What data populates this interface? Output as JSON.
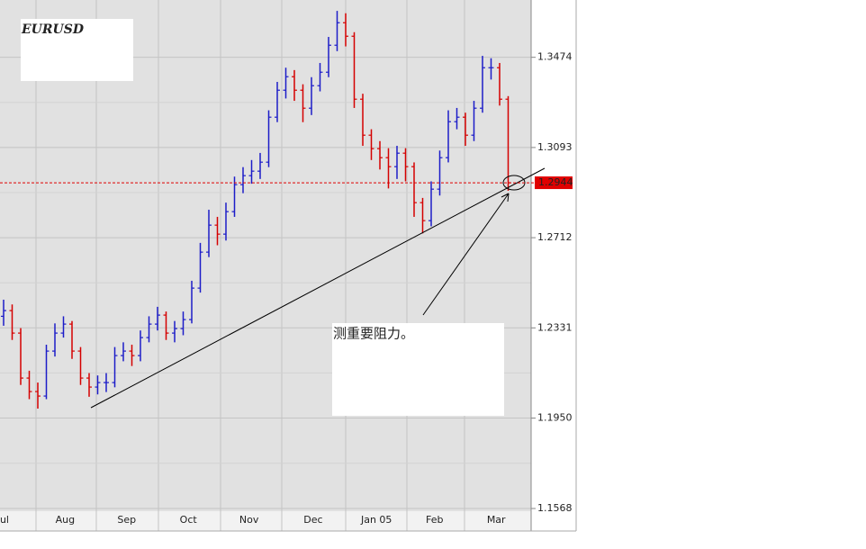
{
  "chart_data": {
    "type": "ohlc",
    "title": "EURUSD",
    "annotation": "测重要阻力。",
    "up_color": "#1c1cc8",
    "down_color": "#d40000",
    "last_price": 1.2944,
    "last_price_color": "#e00000",
    "ylim": [
      1.1473,
      1.3716
    ],
    "yticks": [
      {
        "value": 1.1568,
        "label": "1.1568"
      },
      {
        "value": 1.195,
        "label": "1.1950"
      },
      1.2331,
      1.2712,
      1.3093,
      1.3474
    ],
    "xlim": [
      0,
      60
    ],
    "xticks": [
      {
        "value": 0.1,
        "label": "ul"
      },
      {
        "value": 7.2,
        "label": "Aug"
      },
      {
        "value": 14.4,
        "label": "Sep"
      },
      {
        "value": 21.6,
        "label": "Oct"
      },
      {
        "value": 28.7,
        "label": "Nov"
      },
      {
        "value": 36.2,
        "label": "Dec"
      },
      {
        "value": 43.6,
        "label": "Jan 05"
      },
      {
        "value": 50.4,
        "label": "Feb"
      },
      {
        "value": 57.6,
        "label": "Mar"
      }
    ],
    "open": [
      1.238,
      1.2404,
      1.2309,
      1.2119,
      1.2062,
      1.2043,
      1.2233,
      1.2309,
      1.2347,
      1.2233,
      1.2119,
      1.2081,
      1.21,
      1.21,
      1.2214,
      1.2233,
      1.2214,
      1.229,
      1.2347,
      1.2385,
      1.2309,
      1.2328,
      1.2366,
      1.2499,
      1.2651,
      1.2765,
      1.2727,
      1.2822,
      1.2936,
      1.2974,
      1.2993,
      1.3031,
      1.3221,
      1.3335,
      1.3392,
      1.3335,
      1.3259,
      1.3354,
      1.3411,
      1.3525,
      1.362,
      1.3563,
      1.3297,
      1.3145,
      1.3088,
      1.305,
      1.3012,
      1.3069,
      1.3012,
      1.286,
      1.2784,
      1.2917,
      1.305,
      1.3202,
      1.3221,
      1.3145,
      1.3259,
      1.343,
      1.343,
      1.3297
    ],
    "high": [
      1.245,
      1.243,
      1.233,
      1.215,
      1.21,
      1.226,
      1.235,
      1.238,
      1.236,
      1.225,
      1.214,
      1.213,
      1.214,
      1.225,
      1.227,
      1.226,
      1.232,
      1.238,
      1.242,
      1.24,
      1.236,
      1.24,
      1.253,
      1.269,
      1.283,
      1.28,
      1.286,
      1.297,
      1.301,
      1.304,
      1.307,
      1.325,
      1.337,
      1.343,
      1.342,
      1.336,
      1.339,
      1.345,
      1.356,
      1.367,
      1.366,
      1.358,
      1.332,
      1.317,
      1.312,
      1.309,
      1.31,
      1.309,
      1.303,
      1.288,
      1.295,
      1.308,
      1.325,
      1.326,
      1.324,
      1.329,
      1.348,
      1.347,
      1.345,
      1.331
    ],
    "low": [
      1.234,
      1.228,
      1.209,
      1.203,
      1.199,
      1.203,
      1.221,
      1.229,
      1.22,
      1.209,
      1.204,
      1.205,
      1.206,
      1.208,
      1.219,
      1.217,
      1.219,
      1.227,
      1.232,
      1.228,
      1.227,
      1.23,
      1.235,
      1.248,
      1.263,
      1.268,
      1.27,
      1.28,
      1.29,
      1.294,
      1.296,
      1.301,
      1.32,
      1.33,
      1.329,
      1.32,
      1.323,
      1.333,
      1.339,
      1.35,
      1.352,
      1.326,
      1.31,
      1.304,
      1.3,
      1.292,
      1.296,
      1.295,
      1.28,
      1.273,
      1.276,
      1.289,
      1.303,
      1.317,
      1.31,
      1.312,
      1.324,
      1.338,
      1.327,
      1.291
    ],
    "close": [
      1.2404,
      1.2309,
      1.2119,
      1.2062,
      1.2043,
      1.2233,
      1.2309,
      1.2347,
      1.2233,
      1.2119,
      1.2081,
      1.21,
      1.21,
      1.2214,
      1.2233,
      1.2214,
      1.229,
      1.2347,
      1.2385,
      1.2309,
      1.2328,
      1.2366,
      1.2499,
      1.2651,
      1.2765,
      1.2727,
      1.2822,
      1.2936,
      1.2974,
      1.2993,
      1.3031,
      1.3221,
      1.3335,
      1.3392,
      1.3335,
      1.3259,
      1.3354,
      1.3411,
      1.3525,
      1.362,
      1.3563,
      1.3297,
      1.3145,
      1.3088,
      1.305,
      1.3012,
      1.3069,
      1.3012,
      1.286,
      1.2784,
      1.2917,
      1.305,
      1.3202,
      1.3221,
      1.3145,
      1.3259,
      1.343,
      1.343,
      1.3297,
      1.2944
    ]
  }
}
